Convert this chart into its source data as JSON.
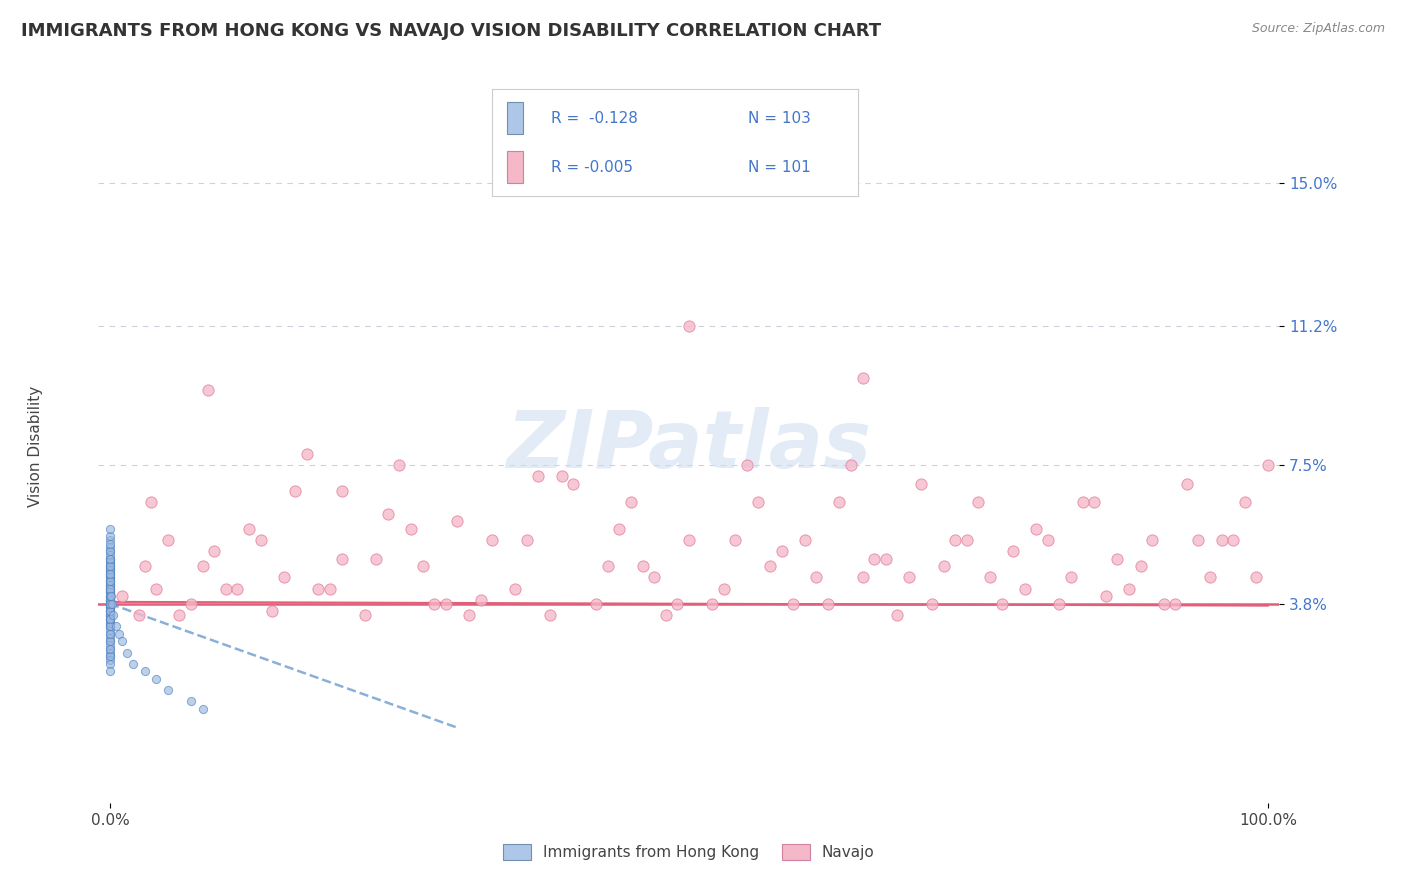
{
  "title": "IMMIGRANTS FROM HONG KONG VS NAVAJO VISION DISABILITY CORRELATION CHART",
  "source": "Source: ZipAtlas.com",
  "ylabel": "Vision Disability",
  "watermark": "ZIPatlas",
  "xlim": [
    -1.0,
    101.0
  ],
  "ylim": [
    -1.5,
    17.5
  ],
  "x_ticks": [
    0.0,
    100.0
  ],
  "x_tick_labels": [
    "0.0%",
    "100.0%"
  ],
  "y_tick_vals": [
    3.8,
    7.5,
    11.2,
    15.0
  ],
  "y_tick_labels": [
    "3.8%",
    "7.5%",
    "11.2%",
    "15.0%"
  ],
  "hline_pink_y": 3.8,
  "hline_pink_color": "#e0607a",
  "grid_color": "#d0d0dd",
  "background_color": "#ffffff",
  "title_fontsize": 13,
  "axis_label_fontsize": 11,
  "tick_fontsize": 11,
  "blue_scatter": {
    "x": [
      0.0,
      0.0,
      0.0,
      0.0,
      0.0,
      0.0,
      0.0,
      0.0,
      0.0,
      0.0,
      0.0,
      0.0,
      0.0,
      0.0,
      0.0,
      0.0,
      0.0,
      0.0,
      0.0,
      0.0,
      0.0,
      0.0,
      0.0,
      0.0,
      0.0,
      0.0,
      0.0,
      0.0,
      0.0,
      0.0,
      0.0,
      0.0,
      0.0,
      0.0,
      0.0,
      0.0,
      0.0,
      0.0,
      0.0,
      0.0,
      0.0,
      0.0,
      0.0,
      0.0,
      0.0,
      0.0,
      0.0,
      0.0,
      0.0,
      0.0,
      0.0,
      0.0,
      0.0,
      0.0,
      0.0,
      0.0,
      0.0,
      0.0,
      0.0,
      0.0,
      0.0,
      0.0,
      0.0,
      0.0,
      0.0,
      0.0,
      0.0,
      0.0,
      0.0,
      0.0,
      0.0,
      0.0,
      0.0,
      0.0,
      0.0,
      0.0,
      0.0,
      0.0,
      0.0,
      0.0,
      0.0,
      0.0,
      0.0,
      0.0,
      0.0,
      0.0,
      0.0,
      0.0,
      0.0,
      0.0,
      0.1,
      0.2,
      0.3,
      0.5,
      0.8,
      1.0,
      1.5,
      2.0,
      3.0,
      4.0,
      5.0,
      7.0,
      8.0
    ],
    "y": [
      3.2,
      3.4,
      3.5,
      3.6,
      3.7,
      3.8,
      3.9,
      4.0,
      4.1,
      4.2,
      4.3,
      4.4,
      4.5,
      4.6,
      4.7,
      4.8,
      3.0,
      2.8,
      2.6,
      2.4,
      3.1,
      3.3,
      3.5,
      3.7,
      3.9,
      4.1,
      4.3,
      4.5,
      4.7,
      4.9,
      3.2,
      3.4,
      3.6,
      3.8,
      4.0,
      4.2,
      4.4,
      4.6,
      4.8,
      5.0,
      3.3,
      3.5,
      3.7,
      3.9,
      4.1,
      4.3,
      2.9,
      2.7,
      2.5,
      2.3,
      5.2,
      5.0,
      4.8,
      4.6,
      4.4,
      4.2,
      4.0,
      3.8,
      3.6,
      3.4,
      5.5,
      5.3,
      5.1,
      4.9,
      4.7,
      4.5,
      4.3,
      4.1,
      3.9,
      3.7,
      2.2,
      2.0,
      2.4,
      2.6,
      2.8,
      3.0,
      3.2,
      3.4,
      3.6,
      3.8,
      4.0,
      4.2,
      4.4,
      4.6,
      4.8,
      5.0,
      5.2,
      5.4,
      5.6,
      5.8,
      4.0,
      3.8,
      3.5,
      3.2,
      3.0,
      2.8,
      2.5,
      2.2,
      2.0,
      1.8,
      1.5,
      1.2,
      1.0
    ],
    "color": "#9ab8e0",
    "edgecolor": "#5080c0",
    "size": 35,
    "alpha": 0.65
  },
  "pink_scatter": {
    "x": [
      1.0,
      2.5,
      3.5,
      5.0,
      7.0,
      8.0,
      9.0,
      10.0,
      12.0,
      14.0,
      15.0,
      16.0,
      18.0,
      20.0,
      22.0,
      24.0,
      25.0,
      27.0,
      28.0,
      30.0,
      32.0,
      33.0,
      35.0,
      37.0,
      38.0,
      40.0,
      42.0,
      44.0,
      45.0,
      47.0,
      48.0,
      50.0,
      52.0,
      53.0,
      55.0,
      57.0,
      58.0,
      60.0,
      62.0,
      63.0,
      65.0,
      67.0,
      68.0,
      70.0,
      72.0,
      73.0,
      75.0,
      77.0,
      78.0,
      80.0,
      82.0,
      83.0,
      85.0,
      87.0,
      88.0,
      90.0,
      92.0,
      93.0,
      95.0,
      97.0,
      98.0,
      100.0,
      3.0,
      6.0,
      11.0,
      17.0,
      23.0,
      29.0,
      36.0,
      43.0,
      49.0,
      56.0,
      61.0,
      66.0,
      71.0,
      76.0,
      81.0,
      86.0,
      91.0,
      96.0,
      4.0,
      8.5,
      13.0,
      19.0,
      26.0,
      31.0,
      39.0,
      46.0,
      54.0,
      59.0,
      64.0,
      69.0,
      74.0,
      79.0,
      84.0,
      89.0,
      94.0,
      99.0,
      50.0,
      65.0,
      20.0
    ],
    "y": [
      4.0,
      3.5,
      6.5,
      5.5,
      3.8,
      4.8,
      5.2,
      4.2,
      5.8,
      3.6,
      4.5,
      6.8,
      4.2,
      5.0,
      3.5,
      6.2,
      7.5,
      4.8,
      3.8,
      6.0,
      3.9,
      5.5,
      4.2,
      7.2,
      3.5,
      7.0,
      3.8,
      5.8,
      6.5,
      4.5,
      3.5,
      5.5,
      3.8,
      4.2,
      7.5,
      4.8,
      5.2,
      5.5,
      3.8,
      6.5,
      4.5,
      5.0,
      3.5,
      7.0,
      4.8,
      5.5,
      6.5,
      3.8,
      5.2,
      5.8,
      3.8,
      4.5,
      6.5,
      5.0,
      4.2,
      5.5,
      3.8,
      7.0,
      4.5,
      5.5,
      6.5,
      7.5,
      4.8,
      3.5,
      4.2,
      7.8,
      5.0,
      3.8,
      5.5,
      4.8,
      3.8,
      6.5,
      4.5,
      5.0,
      3.8,
      4.5,
      5.5,
      4.0,
      3.8,
      5.5,
      4.2,
      9.5,
      5.5,
      4.2,
      5.8,
      3.5,
      7.2,
      4.8,
      5.5,
      3.8,
      7.5,
      4.5,
      5.5,
      4.2,
      6.5,
      4.8,
      5.5,
      4.5,
      11.2,
      9.8,
      6.8
    ],
    "color": "#f5b8c8",
    "edgecolor": "#e080a0",
    "size": 65,
    "alpha": 0.78
  },
  "trendline_blue": {
    "x": [
      0.0,
      30.0
    ],
    "y": [
      3.8,
      0.5
    ],
    "color": "#8ab0d8",
    "linewidth": 1.8,
    "linestyle": "--"
  },
  "trendline_pink": {
    "x": [
      0.0,
      100.0
    ],
    "y": [
      3.85,
      3.75
    ],
    "color": "#e0607a",
    "linewidth": 1.5,
    "linestyle": "-"
  },
  "legend_box": {
    "blue_color": "#aec6e8",
    "blue_edge": "#7090b0",
    "pink_color": "#f4b8c8",
    "pink_edge": "#d080a0",
    "r1": "R =  -0.128",
    "n1": "N = 103",
    "r2": "R = -0.005",
    "n2": "N = 101",
    "text_color": "#4477cc",
    "fontsize": 11
  }
}
